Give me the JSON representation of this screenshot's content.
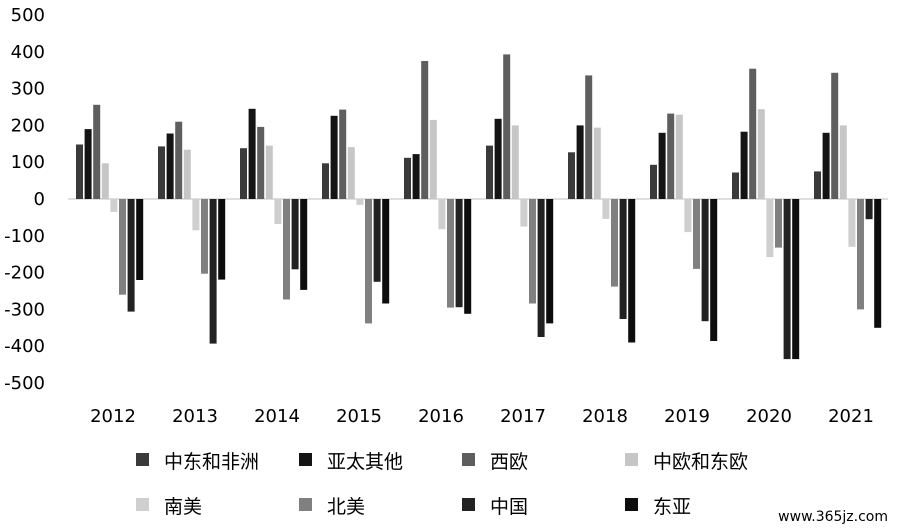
{
  "chart_data": {
    "type": "bar",
    "title": "",
    "xlabel": "",
    "ylabel": "",
    "ylim": [
      -500,
      500
    ],
    "yticks": [
      500,
      400,
      300,
      200,
      100,
      0,
      -100,
      -200,
      -300,
      -400,
      -500
    ],
    "grid": false,
    "legend_position": "bottom",
    "categories": [
      "2012",
      "2013",
      "2014",
      "2015",
      "2016",
      "2017",
      "2018",
      "2019",
      "2020",
      "2021"
    ],
    "series": [
      {
        "name": "中东和非洲",
        "color": "#3a3a3a",
        "values": [
          148,
          143,
          138,
          97,
          112,
          145,
          127,
          93,
          72,
          75
        ]
      },
      {
        "name": "亚太其他",
        "color": "#141414",
        "values": [
          190,
          178,
          245,
          226,
          122,
          218,
          200,
          180,
          183,
          180
        ]
      },
      {
        "name": "西欧",
        "color": "#5e5e5e",
        "values": [
          256,
          210,
          196,
          243,
          375,
          393,
          336,
          232,
          354,
          343
        ]
      },
      {
        "name": "中欧和东欧",
        "color": "#c6c6c6",
        "values": [
          97,
          134,
          145,
          141,
          215,
          200,
          194,
          229,
          244,
          200
        ]
      },
      {
        "name": "南美",
        "color": "#cfcfcf",
        "values": [
          -35,
          -85,
          -68,
          -16,
          -82,
          -75,
          -54,
          -90,
          -158,
          -130
        ]
      },
      {
        "name": "北美",
        "color": "#808080",
        "values": [
          -260,
          -203,
          -273,
          -338,
          -295,
          -284,
          -238,
          -190,
          -132,
          -300
        ]
      },
      {
        "name": "中国",
        "color": "#222222",
        "values": [
          -306,
          -393,
          -191,
          -225,
          -294,
          -375,
          -326,
          -332,
          -435,
          -55
        ]
      },
      {
        "name": "东亚",
        "color": "#0d0d0d",
        "values": [
          -220,
          -219,
          -247,
          -284,
          -312,
          -338,
          -390,
          -386,
          -435,
          -350
        ]
      }
    ]
  },
  "watermark": "www.365jz.com"
}
